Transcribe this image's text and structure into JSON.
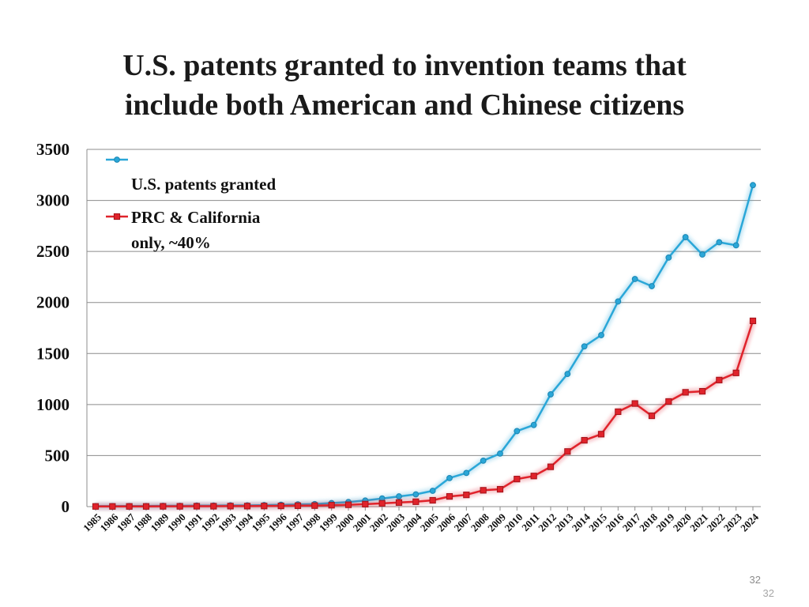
{
  "slide": {
    "title_line1": "U.S. patents granted to invention teams that",
    "title_line2": "include both American and Chinese citizens",
    "slide_number": "32",
    "slide_number_footer": "32"
  },
  "chart_data": {
    "type": "line",
    "title": "U.S. patents granted to invention teams that include both American and Chinese citizens",
    "xlabel": "",
    "ylabel": "",
    "ylim": [
      0,
      3500
    ],
    "yticks": [
      0,
      500,
      1000,
      1500,
      2000,
      2500,
      3000,
      3500
    ],
    "grid": true,
    "legend_placement": "top-left",
    "categories": [
      "1985",
      "1986",
      "1987",
      "1988",
      "1989",
      "1990",
      "1991",
      "1992",
      "1993",
      "1994",
      "1995",
      "1996",
      "1997",
      "1998",
      "1999",
      "2000",
      "2001",
      "2002",
      "2003",
      "2004",
      "2005",
      "2006",
      "2007",
      "2008",
      "2009",
      "2010",
      "2011",
      "2012",
      "2013",
      "2014",
      "2015",
      "2016",
      "2017",
      "2018",
      "2019",
      "2020",
      "2021",
      "2022",
      "2023",
      "2024"
    ],
    "series": [
      {
        "name": "U.S. patents granted",
        "color": "#2aa7d8",
        "marker": "circle",
        "values": [
          5,
          5,
          6,
          6,
          8,
          8,
          10,
          10,
          12,
          12,
          15,
          18,
          22,
          25,
          35,
          45,
          60,
          80,
          100,
          120,
          155,
          280,
          330,
          450,
          520,
          740,
          800,
          1100,
          1300,
          1570,
          1680,
          2010,
          2230,
          2160,
          2440,
          2640,
          2470,
          2590,
          2560,
          3150
        ]
      },
      {
        "name": "PRC & California only, ~40%",
        "color": "#e0232b",
        "marker": "square",
        "values": [
          2,
          2,
          2,
          2,
          3,
          3,
          4,
          4,
          5,
          5,
          6,
          7,
          9,
          10,
          14,
          18,
          24,
          32,
          40,
          48,
          62,
          100,
          115,
          160,
          170,
          270,
          300,
          390,
          540,
          650,
          710,
          930,
          1010,
          890,
          1030,
          1120,
          1130,
          1240,
          1310,
          1820
        ]
      }
    ]
  }
}
